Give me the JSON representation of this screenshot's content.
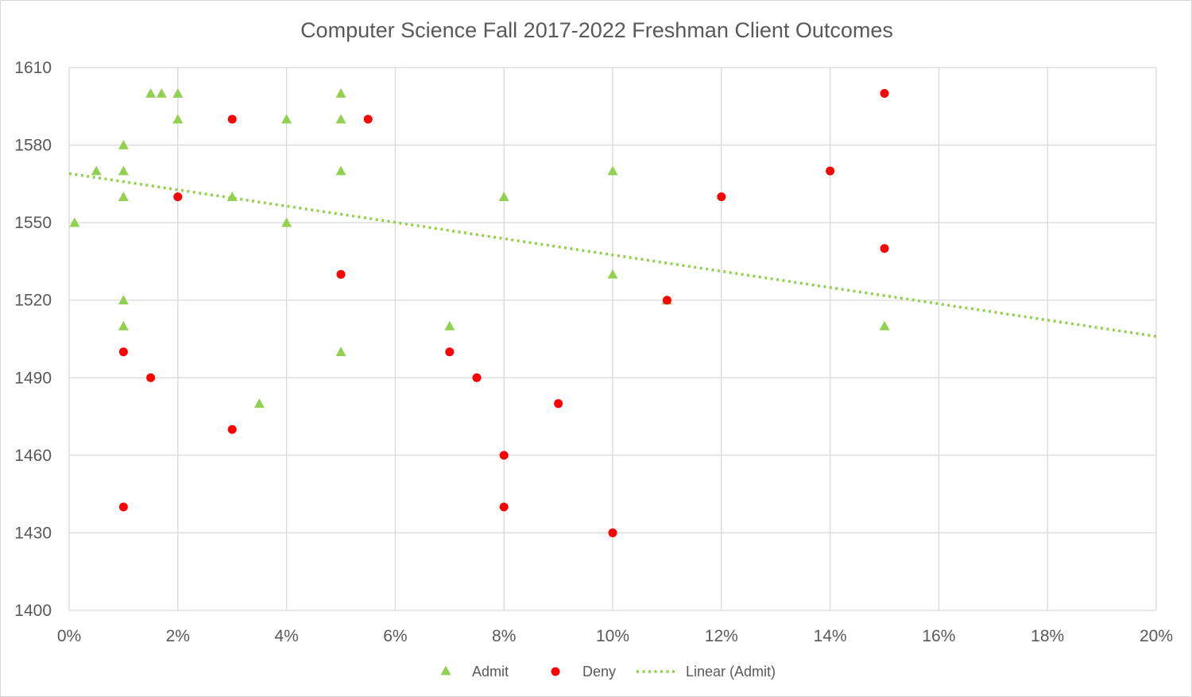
{
  "chart_data": {
    "type": "scatter",
    "title": "Computer Science Fall 2017-2022  Freshman Client Outcomes",
    "xlabel": "",
    "ylabel": "",
    "xlim": [
      0,
      20
    ],
    "ylim": [
      1400,
      1610
    ],
    "x_ticks": [
      0,
      2,
      4,
      6,
      8,
      10,
      12,
      14,
      16,
      18,
      20
    ],
    "x_tick_labels": [
      "0%",
      "2%",
      "4%",
      "6%",
      "8%",
      "10%",
      "12%",
      "14%",
      "16%",
      "18%",
      "20%"
    ],
    "y_ticks": [
      1400,
      1430,
      1460,
      1490,
      1520,
      1550,
      1580,
      1610
    ],
    "y_tick_labels": [
      "1400",
      "1430",
      "1460",
      "1490",
      "1520",
      "1550",
      "1580",
      "1610"
    ],
    "grid": true,
    "legend_position": "bottom",
    "series": [
      {
        "name": "Admit",
        "marker": "triangle",
        "color": "#92d050",
        "points": [
          [
            0.1,
            1550
          ],
          [
            0.5,
            1570
          ],
          [
            1,
            1580
          ],
          [
            1,
            1570
          ],
          [
            1,
            1560
          ],
          [
            1,
            1520
          ],
          [
            1,
            1510
          ],
          [
            1.5,
            1600
          ],
          [
            1.7,
            1600
          ],
          [
            2,
            1600
          ],
          [
            2,
            1590
          ],
          [
            3,
            1560
          ],
          [
            3.5,
            1480
          ],
          [
            4,
            1590
          ],
          [
            4,
            1550
          ],
          [
            5,
            1600
          ],
          [
            5,
            1590
          ],
          [
            5,
            1570
          ],
          [
            5,
            1500
          ],
          [
            7,
            1510
          ],
          [
            8,
            1560
          ],
          [
            10,
            1570
          ],
          [
            10,
            1530
          ],
          [
            11,
            1520
          ],
          [
            15,
            1510
          ]
        ]
      },
      {
        "name": "Deny",
        "marker": "circle",
        "color": "#ff0000",
        "points": [
          [
            1,
            1500
          ],
          [
            1,
            1440
          ],
          [
            1.5,
            1490
          ],
          [
            2,
            1560
          ],
          [
            3,
            1590
          ],
          [
            3,
            1470
          ],
          [
            5,
            1530
          ],
          [
            5.5,
            1590
          ],
          [
            7,
            1500
          ],
          [
            7.5,
            1490
          ],
          [
            8,
            1460
          ],
          [
            8,
            1440
          ],
          [
            9,
            1480
          ],
          [
            10,
            1430
          ],
          [
            11,
            1520
          ],
          [
            12,
            1560
          ],
          [
            14,
            1570
          ],
          [
            15,
            1600
          ],
          [
            15,
            1540
          ]
        ]
      }
    ],
    "trendline": {
      "name": "Linear (Admit)",
      "type": "linear",
      "of_series": "Admit",
      "style": "dotted",
      "color": "#92d050",
      "x_range": [
        0,
        20
      ],
      "y_range": [
        1569,
        1506
      ]
    }
  }
}
